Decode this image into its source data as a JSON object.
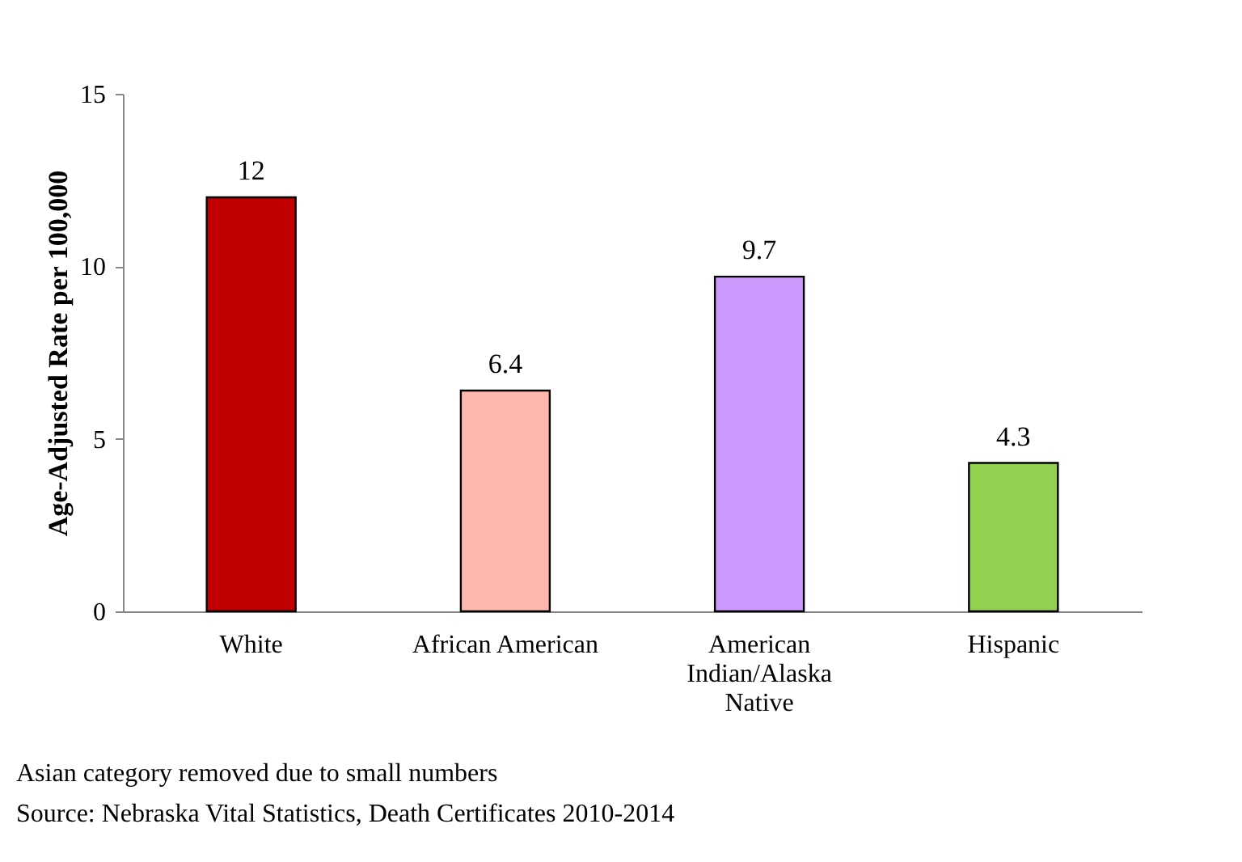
{
  "chart_data": {
    "type": "bar",
    "ylabel": "Age-Adjusted Rate per 100,000",
    "categories": [
      "White",
      "African American",
      "American Indian/Alaska Native",
      "Hispanic"
    ],
    "values": [
      12,
      6.4,
      9.7,
      4.3
    ],
    "colors": [
      "#c00000",
      "#ffb8ae",
      "#cc99ff",
      "#92d050"
    ],
    "ylim": [
      0,
      15
    ],
    "yticks": [
      0,
      5,
      10,
      15
    ],
    "grid": false,
    "data_labels": true,
    "annotations": [
      "Asian category removed due to small numbers",
      "Source: Nebraska Vital Statistics, Death Certificates 2010-2014"
    ]
  }
}
